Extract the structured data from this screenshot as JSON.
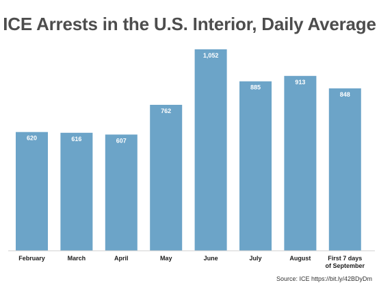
{
  "colors": {
    "bar": "#6ca4c8",
    "axis": "#cfcfcf",
    "title": "#4d4d4d"
  },
  "chart_data": {
    "type": "bar",
    "title": "ICE Arrests in the U.S. Interior, Daily Average",
    "xlabel": "",
    "ylabel": "",
    "ylim": [
      0,
      1100
    ],
    "grid": false,
    "categories": [
      [
        "February"
      ],
      [
        "March"
      ],
      [
        "April"
      ],
      [
        "May"
      ],
      [
        "June"
      ],
      [
        "July"
      ],
      [
        "August"
      ],
      [
        "First 7 days",
        "of September"
      ]
    ],
    "values": [
      620,
      616,
      607,
      762,
      1052,
      885,
      913,
      848
    ],
    "value_labels": [
      "620",
      "616",
      "607",
      "762",
      "1,052",
      "885",
      "913",
      "848"
    ]
  },
  "source": "Source: ICE https://bit.ly/42BDyDm"
}
